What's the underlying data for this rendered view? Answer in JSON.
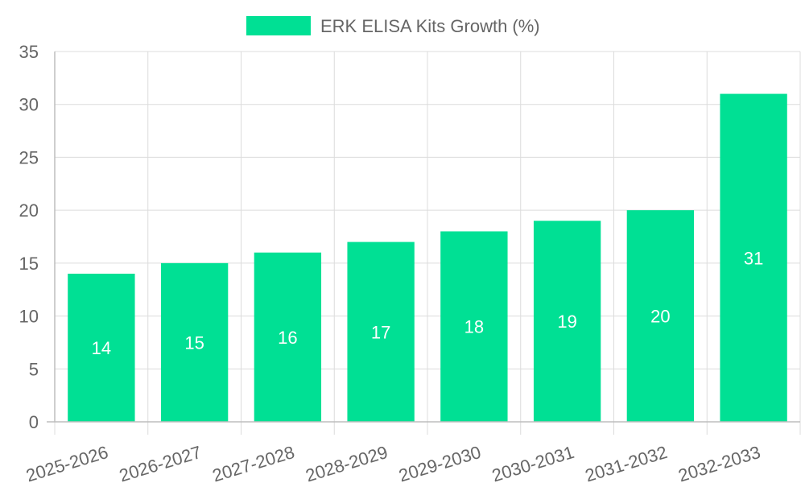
{
  "chart_data": {
    "type": "bar",
    "title": "",
    "xlabel": "",
    "ylabel": "",
    "categories": [
      "2025-2026",
      "2026-2027",
      "2027-2028",
      "2028-2029",
      "2029-2030",
      "2030-2031",
      "2031-2032",
      "2032-2033"
    ],
    "series": [
      {
        "name": "ERK ELISA Kits Growth (%)",
        "values": [
          14,
          15,
          16,
          17,
          18,
          19,
          20,
          31
        ],
        "color": "#00e094"
      }
    ],
    "ylim": [
      0,
      35
    ],
    "yticks": [
      0,
      5,
      10,
      15,
      20,
      25,
      30,
      35
    ],
    "grid": true,
    "legend_position": "top-center",
    "data_labels": true
  }
}
